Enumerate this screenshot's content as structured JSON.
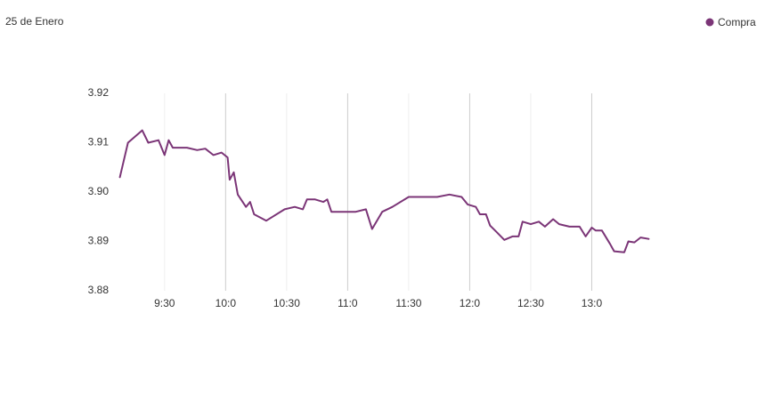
{
  "chart_data": {
    "type": "line",
    "title": "25 de Enero",
    "x": [
      548,
      552,
      559,
      562,
      567,
      570,
      572,
      574,
      581,
      586,
      590,
      594,
      598,
      601,
      602,
      604,
      606,
      610,
      612,
      614,
      620,
      629,
      634,
      638,
      640,
      644,
      648,
      650,
      652,
      658,
      664,
      669,
      672,
      677,
      682,
      690,
      695,
      704,
      710,
      716,
      719,
      723,
      725,
      728,
      730,
      733,
      737,
      741,
      744,
      746,
      750,
      754,
      757,
      761,
      764,
      769,
      774,
      777,
      780,
      782,
      785,
      789,
      791,
      796,
      798,
      801,
      804,
      808
    ],
    "series": [
      {
        "name": "Compra",
        "color": "#7b3577",
        "values": [
          3.903,
          3.91,
          3.9125,
          3.91,
          3.9105,
          3.9075,
          3.9105,
          3.909,
          3.909,
          3.9085,
          3.9088,
          3.9075,
          3.908,
          3.907,
          3.9025,
          3.904,
          3.8995,
          3.897,
          3.898,
          3.8955,
          3.8942,
          3.8965,
          3.897,
          3.8965,
          3.8985,
          3.8985,
          3.898,
          3.8985,
          3.896,
          3.896,
          3.896,
          3.8965,
          3.8925,
          3.896,
          3.897,
          3.899,
          3.899,
          3.899,
          3.8995,
          3.899,
          3.8975,
          3.897,
          3.8955,
          3.8955,
          3.8932,
          3.892,
          3.8903,
          3.891,
          3.891,
          3.894,
          3.8935,
          3.894,
          3.893,
          3.8945,
          3.8935,
          3.893,
          3.893,
          3.891,
          3.8928,
          3.8922,
          3.8922,
          3.8895,
          3.888,
          3.8878,
          3.89,
          3.8898,
          3.8908,
          3.8905
        ]
      }
    ],
    "xlim": [
      546,
      810
    ],
    "xticks": [
      {
        "value": 570,
        "label": "9:30"
      },
      {
        "value": 600,
        "label": "10:0"
      },
      {
        "value": 630,
        "label": "10:30"
      },
      {
        "value": 660,
        "label": "11:0"
      },
      {
        "value": 690,
        "label": "11:30"
      },
      {
        "value": 720,
        "label": "12:0"
      },
      {
        "value": 750,
        "label": "12:30"
      },
      {
        "value": 780,
        "label": "13:0"
      }
    ],
    "ylim": [
      3.88,
      3.92
    ],
    "yticks": [
      3.88,
      3.89,
      {
        "value": 3.9,
        "label": "3.90"
      },
      3.91,
      3.92
    ],
    "grid": true,
    "legend": "top-right"
  }
}
